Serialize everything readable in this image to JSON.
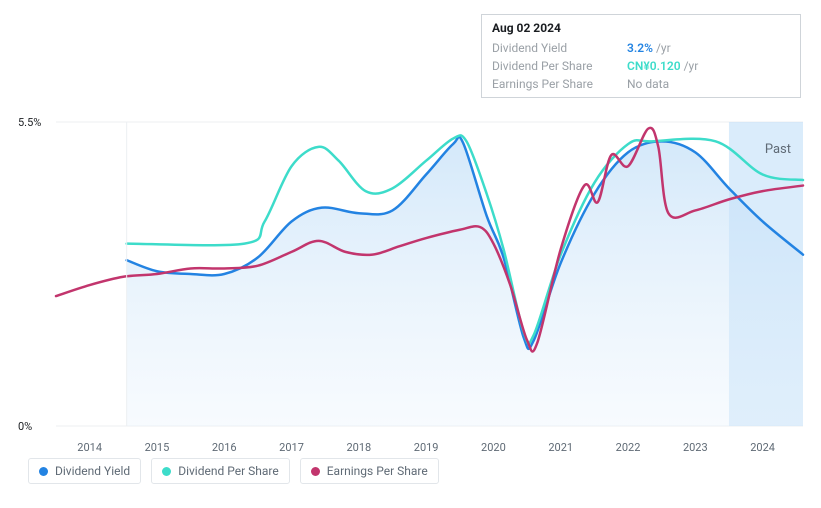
{
  "tooltip": {
    "date": "Aug 02 2024",
    "rows": [
      {
        "label": "Dividend Yield",
        "value": "3.2%",
        "unit": "/yr",
        "color": "blue"
      },
      {
        "label": "Dividend Per Share",
        "value": "CN¥0.120",
        "unit": "/yr",
        "color": "teal"
      },
      {
        "label": "Earnings Per Share",
        "value": "No data",
        "unit": "",
        "color": "gray"
      }
    ]
  },
  "past_label": "Past",
  "chart": {
    "type": "line",
    "background_color": "#ffffff",
    "grid_color": "#eceff2",
    "axis_color": "#5f6a75",
    "tick_fontsize": 11,
    "y_axis": {
      "min": 0,
      "max": 5.5,
      "ticks": [
        {
          "value": 5.5,
          "label": "5.5%"
        },
        {
          "value": 0,
          "label": "0%"
        }
      ]
    },
    "x_axis": {
      "years": [
        2014,
        2015,
        2016,
        2017,
        2018,
        2019,
        2020,
        2021,
        2022,
        2023,
        2024
      ],
      "data_start": 2013.5,
      "data_end": 2024.6,
      "shade_start": 2023.5,
      "pre_start": 2014.55
    },
    "shade_fill": "#bcdcf7",
    "shade_opacity": 0.55,
    "area_fill_top": "#bcdcf7",
    "area_fill_bottom": "#e9f3fc",
    "line_width": 2.5,
    "series": [
      {
        "name": "Dividend Yield",
        "color": "#2383e2",
        "legend_key": "dividend_yield",
        "area": true,
        "points": [
          [
            2014.55,
            3.0
          ],
          [
            2015.0,
            2.8
          ],
          [
            2015.5,
            2.75
          ],
          [
            2016.0,
            2.75
          ],
          [
            2016.5,
            3.05
          ],
          [
            2017.0,
            3.7
          ],
          [
            2017.45,
            3.95
          ],
          [
            2018.0,
            3.85
          ],
          [
            2018.5,
            3.9
          ],
          [
            2019.0,
            4.55
          ],
          [
            2019.4,
            5.1
          ],
          [
            2019.55,
            5.12
          ],
          [
            2019.9,
            3.8
          ],
          [
            2020.15,
            3.05
          ],
          [
            2020.45,
            1.6
          ],
          [
            2020.6,
            1.55
          ],
          [
            2021.0,
            2.95
          ],
          [
            2021.5,
            4.2
          ],
          [
            2022.0,
            4.95
          ],
          [
            2022.5,
            5.15
          ],
          [
            2023.0,
            4.95
          ],
          [
            2023.5,
            4.3
          ],
          [
            2024.0,
            3.7
          ],
          [
            2024.6,
            3.1
          ]
        ]
      },
      {
        "name": "Dividend Per Share",
        "color": "#3ddcca",
        "legend_key": "dividend_per_share",
        "area": false,
        "points": [
          [
            2014.55,
            3.3
          ],
          [
            2016.3,
            3.3
          ],
          [
            2016.6,
            3.7
          ],
          [
            2017.0,
            4.7
          ],
          [
            2017.4,
            5.05
          ],
          [
            2017.7,
            4.8
          ],
          [
            2018.1,
            4.25
          ],
          [
            2018.5,
            4.3
          ],
          [
            2019.0,
            4.8
          ],
          [
            2019.4,
            5.2
          ],
          [
            2019.6,
            5.15
          ],
          [
            2019.9,
            4.2
          ],
          [
            2020.15,
            3.2
          ],
          [
            2020.45,
            1.7
          ],
          [
            2020.6,
            1.65
          ],
          [
            2021.0,
            3.1
          ],
          [
            2021.5,
            4.4
          ],
          [
            2022.0,
            5.1
          ],
          [
            2022.35,
            5.15
          ],
          [
            2023.3,
            5.15
          ],
          [
            2024.0,
            4.55
          ],
          [
            2024.6,
            4.45
          ]
        ]
      },
      {
        "name": "Earnings Per Share",
        "color": "#c2356d",
        "legend_key": "earnings_per_share",
        "area": false,
        "points": [
          [
            2013.5,
            2.35
          ],
          [
            2014.0,
            2.55
          ],
          [
            2014.5,
            2.7
          ],
          [
            2015.0,
            2.75
          ],
          [
            2015.5,
            2.85
          ],
          [
            2016.0,
            2.85
          ],
          [
            2016.5,
            2.9
          ],
          [
            2017.0,
            3.15
          ],
          [
            2017.4,
            3.35
          ],
          [
            2017.8,
            3.15
          ],
          [
            2018.2,
            3.1
          ],
          [
            2018.6,
            3.25
          ],
          [
            2019.0,
            3.4
          ],
          [
            2019.5,
            3.55
          ],
          [
            2019.8,
            3.6
          ],
          [
            2020.0,
            3.3
          ],
          [
            2020.25,
            2.55
          ],
          [
            2020.5,
            1.55
          ],
          [
            2020.65,
            1.5
          ],
          [
            2021.0,
            3.2
          ],
          [
            2021.35,
            4.35
          ],
          [
            2021.55,
            4.05
          ],
          [
            2021.75,
            4.9
          ],
          [
            2022.0,
            4.7
          ],
          [
            2022.3,
            5.38
          ],
          [
            2022.45,
            5.05
          ],
          [
            2022.6,
            3.85
          ],
          [
            2023.0,
            3.9
          ],
          [
            2023.5,
            4.1
          ],
          [
            2024.0,
            4.25
          ],
          [
            2024.6,
            4.35
          ]
        ]
      }
    ]
  },
  "legend_labels": {
    "dividend_yield": "Dividend Yield",
    "dividend_per_share": "Dividend Per Share",
    "earnings_per_share": "Earnings Per Share"
  }
}
